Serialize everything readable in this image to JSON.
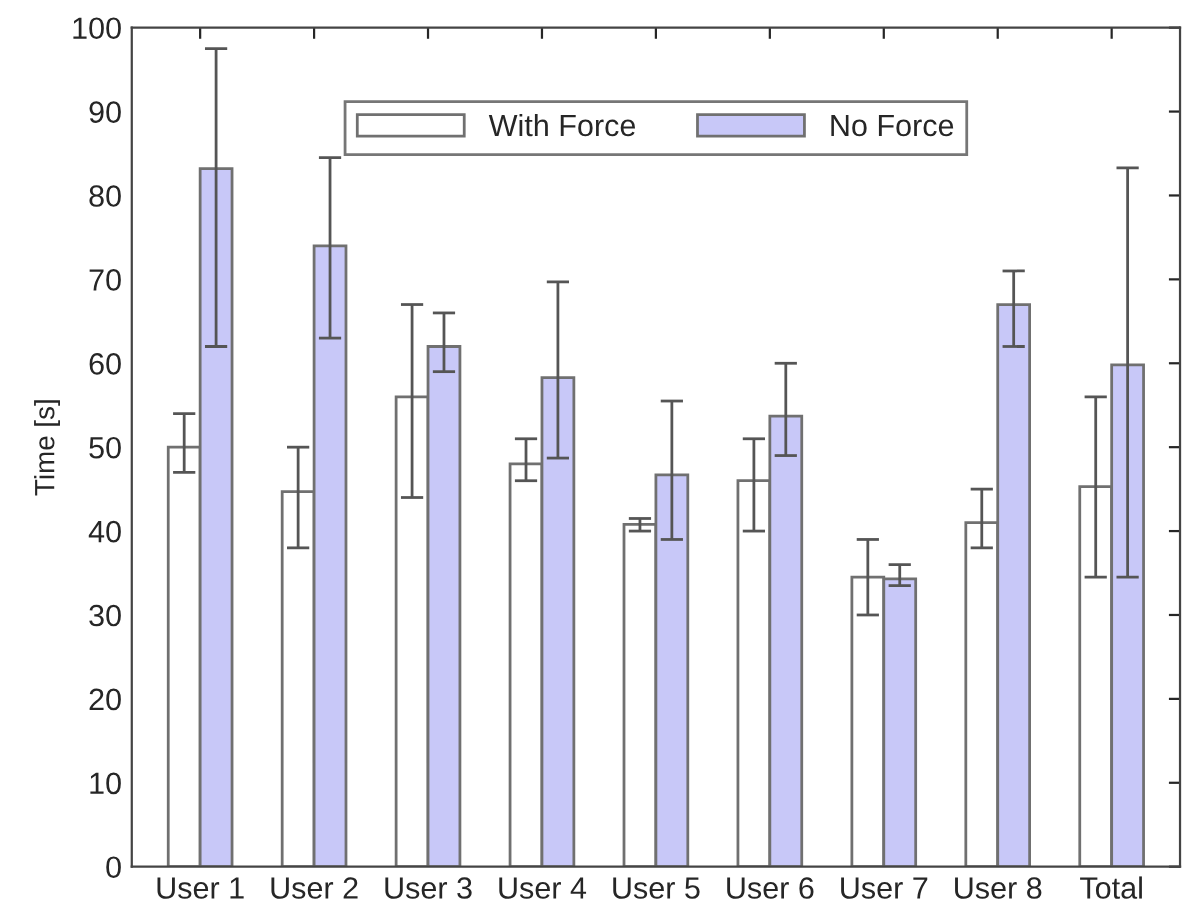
{
  "chart_data": {
    "type": "bar",
    "ylabel": "Time [s]",
    "categories": [
      "User 1",
      "User 2",
      "User 3",
      "User 4",
      "User 5",
      "User 6",
      "User 7",
      "User 8",
      "Total"
    ],
    "series": [
      {
        "name": "With Force",
        "color": "#ffffff",
        "values": [
          50,
          44.7,
          56,
          48,
          40.8,
          46,
          34.5,
          41,
          45.3
        ],
        "errors": [
          [
            47,
            54
          ],
          [
            38,
            50
          ],
          [
            44,
            67
          ],
          [
            46,
            51
          ],
          [
            40,
            41.5
          ],
          [
            40,
            51
          ],
          [
            30,
            39
          ],
          [
            38,
            45
          ],
          [
            34.5,
            56
          ]
        ]
      },
      {
        "name": "No Force",
        "color": "#c8c8f8",
        "values": [
          83.2,
          74,
          62,
          58.3,
          46.7,
          53.7,
          34.3,
          67,
          59.8
        ],
        "errors": [
          [
            62,
            97.5
          ],
          [
            63,
            84.5
          ],
          [
            59,
            66
          ],
          [
            48.7,
            69.7
          ],
          [
            39,
            55.5
          ],
          [
            49,
            60
          ],
          [
            33.5,
            36
          ],
          [
            62,
            71
          ],
          [
            34.5,
            83.3
          ]
        ]
      }
    ],
    "ylim": [
      0,
      100
    ],
    "yticks": [
      0,
      10,
      20,
      30,
      40,
      50,
      60,
      70,
      80,
      90,
      100
    ],
    "grid": false,
    "legend": "top"
  }
}
